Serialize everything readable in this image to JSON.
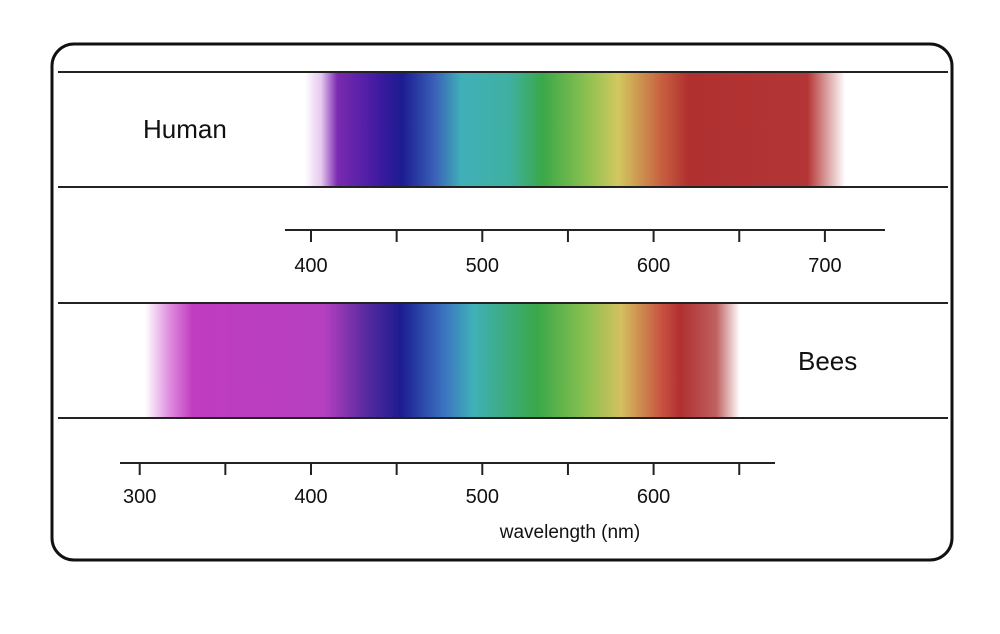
{
  "panels": [
    {
      "label": "Human",
      "axis_ticks": [
        400,
        500,
        600,
        700
      ]
    },
    {
      "label": "Bees",
      "axis_ticks": [
        300,
        400,
        500,
        600
      ]
    }
  ],
  "axis_label": "wavelength (nm)"
}
